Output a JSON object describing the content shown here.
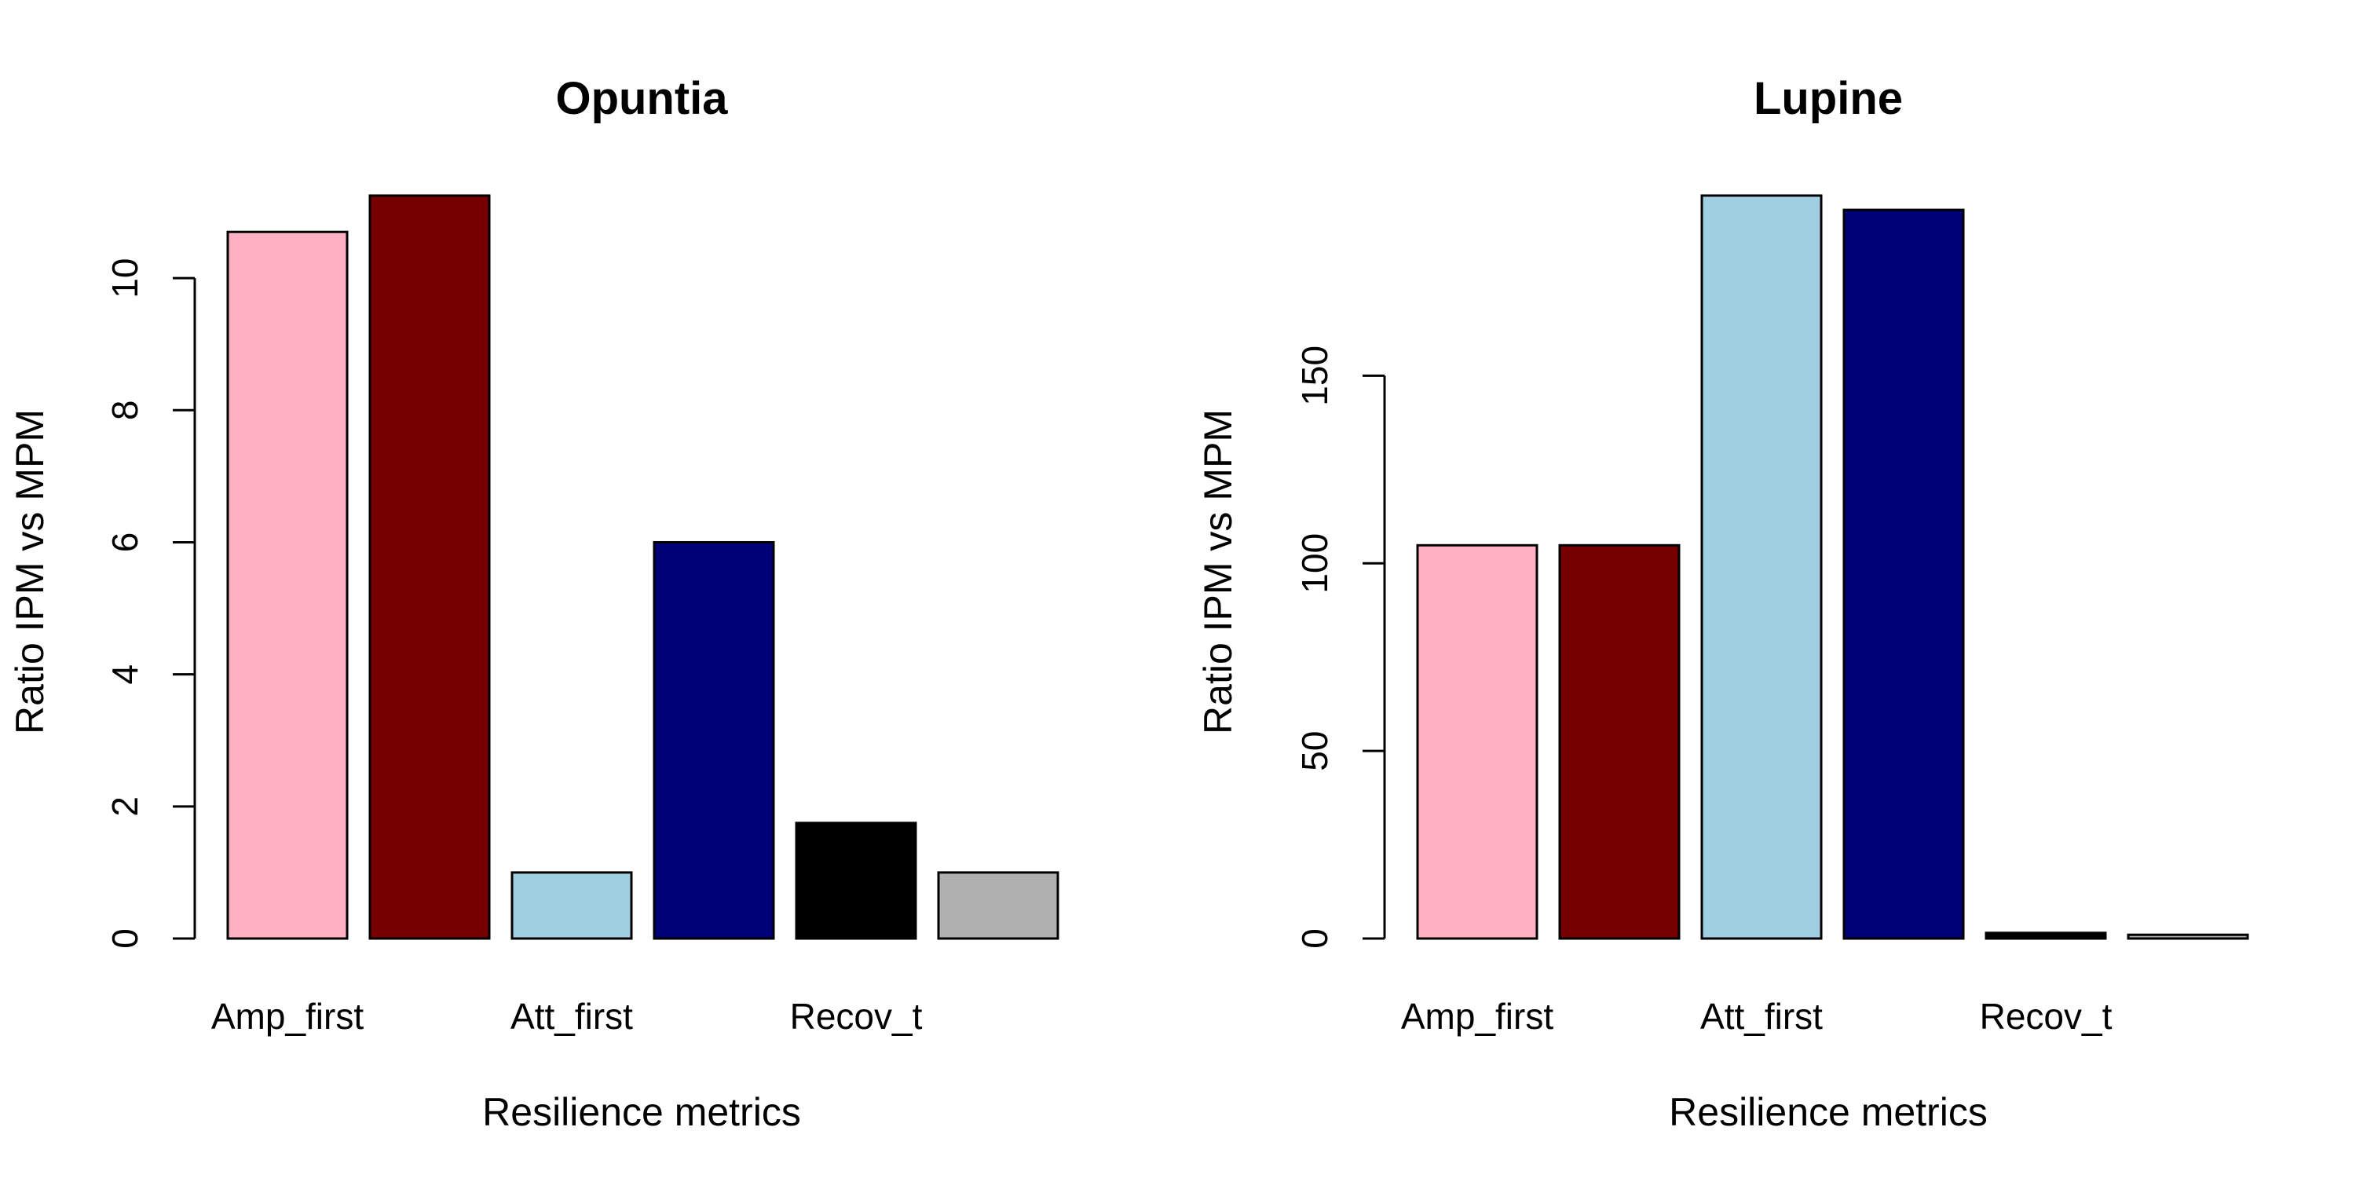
{
  "chart_data": [
    {
      "type": "bar",
      "title": "Opuntia",
      "xlabel": "Resilience metrics",
      "ylabel": "Ratio IPM vs MPM",
      "category_labels_shown": [
        "Amp_first",
        "Att_first",
        "Recov_t"
      ],
      "values": [
        10.7,
        11.25,
        1.0,
        6.0,
        1.75,
        1.0
      ],
      "colors": [
        "#FFB0C2",
        "#760000",
        "#9FCFE0",
        "#000077",
        "#000000",
        "#B0B0B0"
      ],
      "yticks": [
        0,
        2,
        4,
        6,
        8,
        10
      ],
      "ylim": [
        0,
        11.25
      ],
      "grid": false,
      "legend": "none"
    },
    {
      "type": "bar",
      "title": "Lupine",
      "xlabel": "Resilience metrics",
      "ylabel": "Ratio IPM vs MPM",
      "category_labels_shown": [
        "Amp_first",
        "Att_first",
        "Recov_t"
      ],
      "values": [
        104.8,
        104.8,
        198.0,
        194.2,
        1.5,
        1.0
      ],
      "colors": [
        "#FFB0C2",
        "#760000",
        "#9FCFE0",
        "#000077",
        "#000000",
        "#B0B0B0"
      ],
      "yticks": [
        0,
        50,
        100,
        150
      ],
      "ylim": [
        0,
        198
      ],
      "grid": false,
      "legend": "none"
    }
  ]
}
